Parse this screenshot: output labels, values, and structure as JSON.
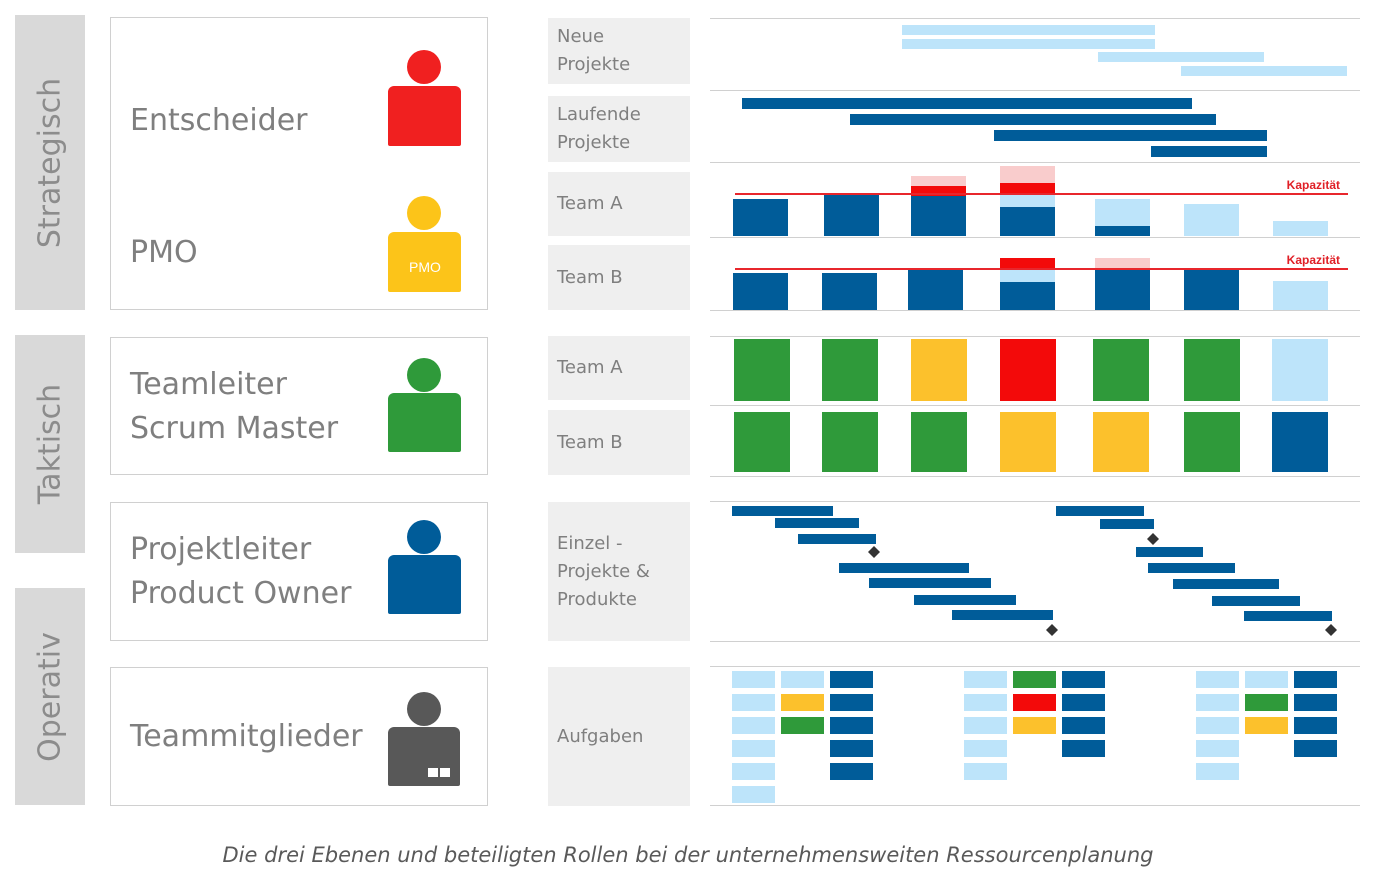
{
  "levels": [
    {
      "label": "Strategisch"
    },
    {
      "label": "Taktisch"
    },
    {
      "label": "Operativ"
    }
  ],
  "roles": [
    {
      "name": "Entscheider",
      "icon": "person-icon",
      "color": "#f02020"
    },
    {
      "name": "PMO",
      "icon": "person-icon",
      "color": "#fcc419",
      "badge": "PMO"
    },
    {
      "name": "Teamleiter\nScrum Master",
      "icon": "person-icon",
      "color": "#2f9a3a"
    },
    {
      "name": "Projektleiter\nProduct Owner",
      "icon": "person-icon",
      "color": "#005c99"
    },
    {
      "name": "Teammitglieder",
      "icon": "person-icon",
      "color": "#585858"
    }
  ],
  "row_labels": [
    "Neue\nProjekte",
    "Laufende\nProjekte",
    "Team A",
    "Team B",
    "Team A",
    "Team B",
    "Einzel -\nProjekte &\nProdukte",
    "Aufgaben"
  ],
  "capacity_label": "Kapazität",
  "caption": "Die drei Ebenen und beteiligten Rollen bei der unternehmensweiten Ressourcenplanung",
  "colors": {
    "dark_blue": "#005c99",
    "light_blue": "#bde4fa",
    "red": "#f30a0a",
    "pink": "#f9cccc",
    "green": "#2f9a3a",
    "yellow": "#fcc12c"
  },
  "chart_data": {
    "type": "diagram",
    "team_a_traffic_light": [
      "green",
      "green",
      "yellow",
      "red",
      "green",
      "green",
      "light_blue"
    ],
    "team_b_traffic_light": [
      "green",
      "green",
      "green",
      "yellow",
      "yellow",
      "green",
      "dark_blue"
    ]
  }
}
